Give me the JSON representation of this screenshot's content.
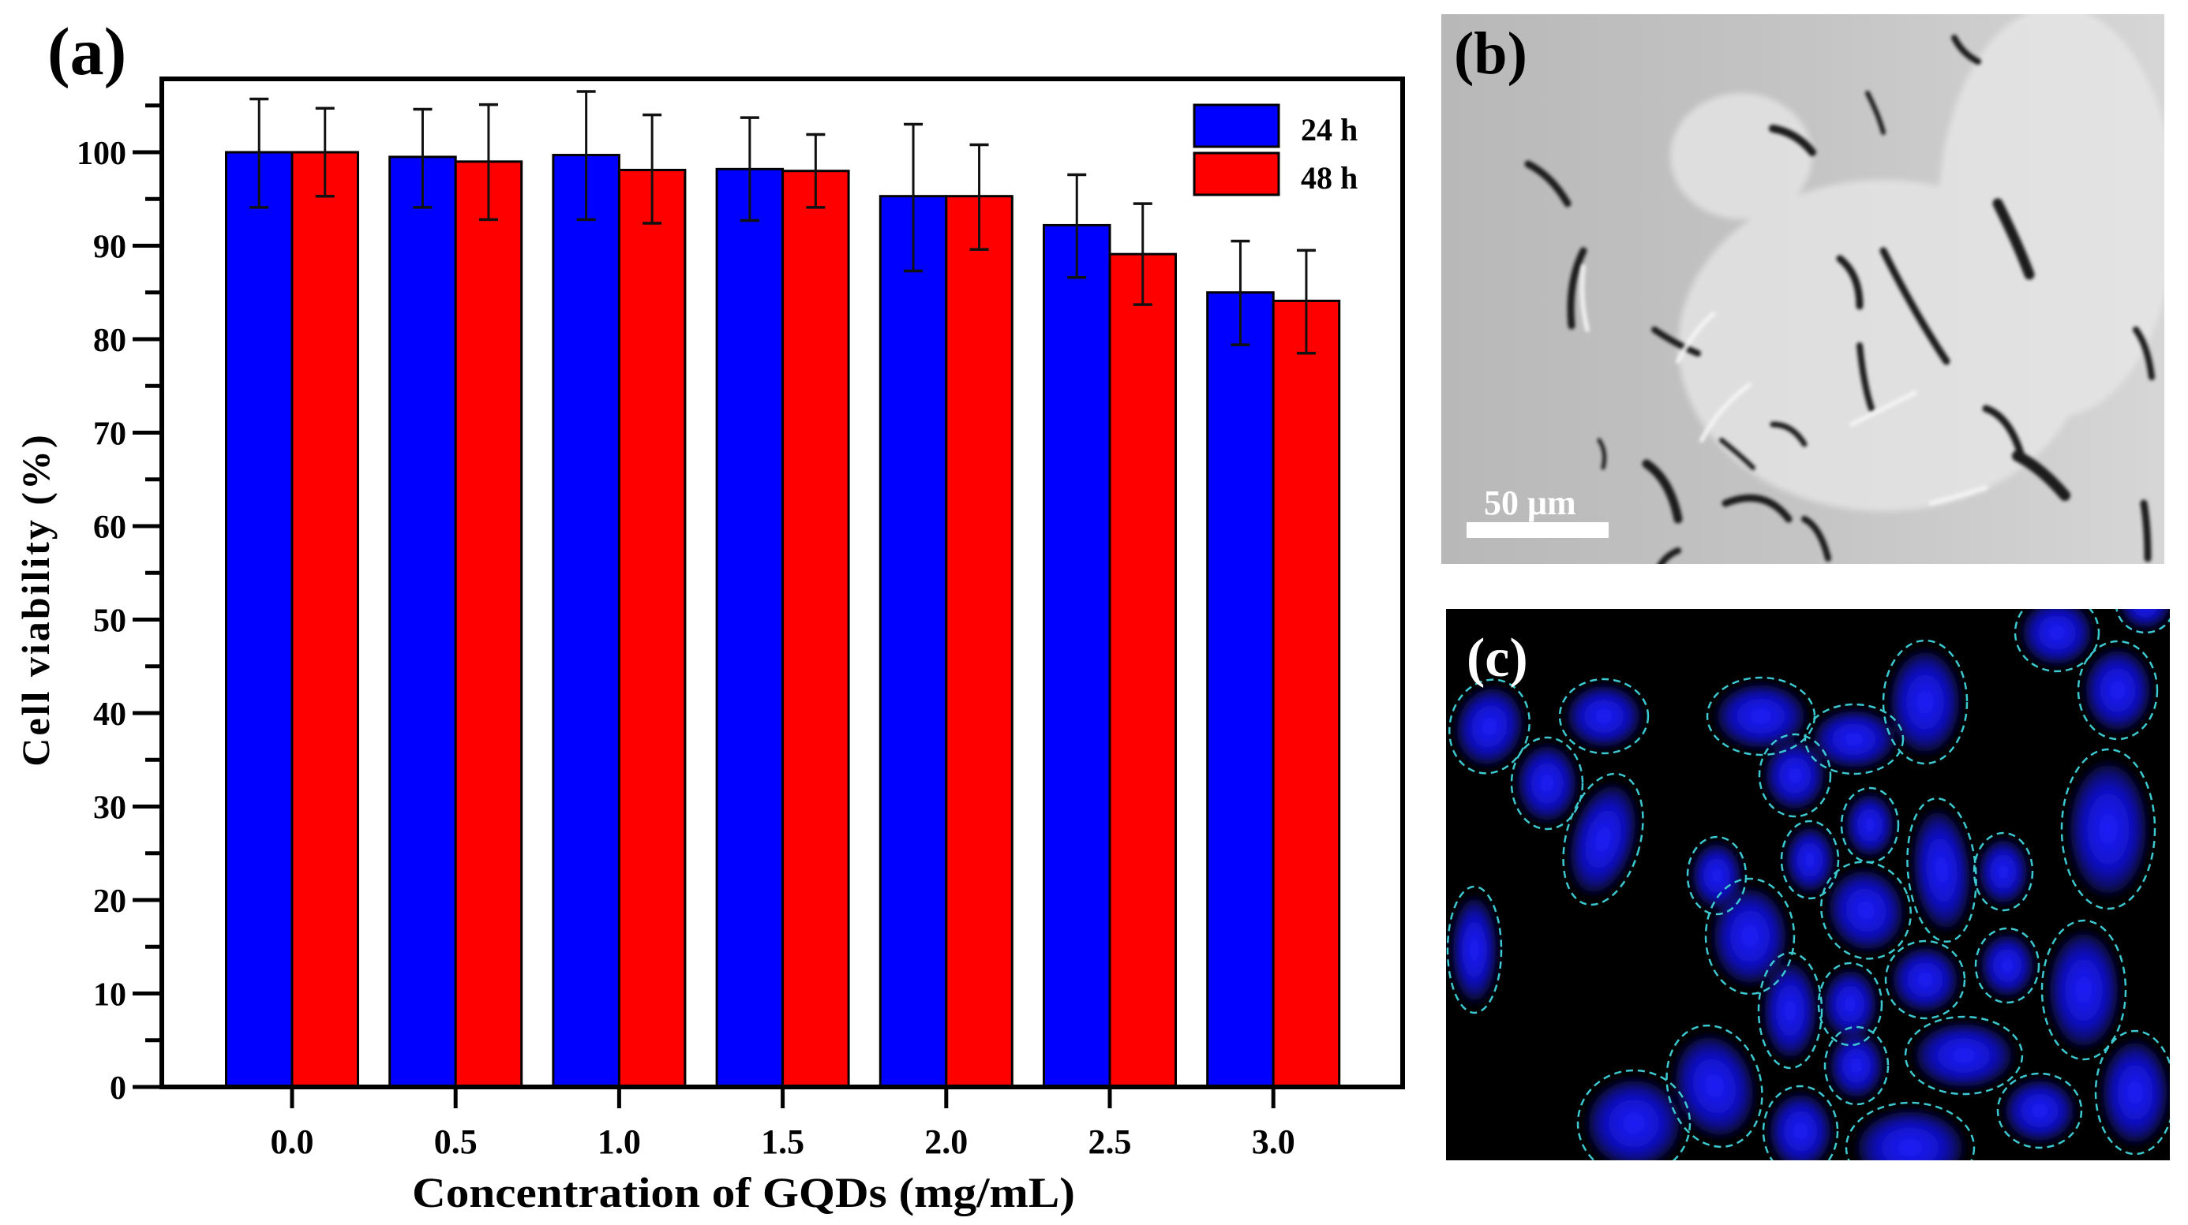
{
  "figure": {
    "panel_a_label": "(a)",
    "panel_b_label": "(b)",
    "panel_c_label": "(c)",
    "scale_bar_label": "50 μm"
  },
  "colors": {
    "series_24h": "#0000ff",
    "series_48h": "#ff0000",
    "axis": "#000000",
    "nucleus_outline": "#3cc8d0",
    "nucleus_fill": "#1a1aff",
    "panel_c_background": "#000000"
  },
  "chart_data": {
    "type": "bar",
    "title": "",
    "xlabel": "Concentration of GQDs (mg/mL)",
    "ylabel": "Cell viability (%)",
    "categories": [
      "0.0",
      "0.5",
      "1.0",
      "1.5",
      "2.0",
      "2.5",
      "3.0"
    ],
    "series": [
      {
        "name": "24 h",
        "color": "#0000ff",
        "values": [
          100.0,
          99.5,
          99.7,
          98.2,
          95.3,
          92.2,
          85.0
        ],
        "error_low": [
          94.1,
          94.1,
          92.8,
          92.7,
          87.3,
          86.6,
          79.4
        ],
        "error_high": [
          105.7,
          104.6,
          106.5,
          103.7,
          103.0,
          97.6,
          90.5
        ]
      },
      {
        "name": "48 h",
        "color": "#ff0000",
        "values": [
          100.0,
          99.0,
          98.1,
          98.0,
          95.3,
          89.1,
          84.1
        ],
        "error_low": [
          95.3,
          92.8,
          92.4,
          94.1,
          89.6,
          83.7,
          78.5
        ],
        "error_high": [
          104.7,
          105.1,
          104.0,
          101.9,
          100.8,
          94.5,
          89.5
        ]
      }
    ],
    "yticks": [
      0,
      10,
      20,
      30,
      40,
      50,
      60,
      70,
      80,
      90,
      100
    ],
    "ylim": [
      0,
      108
    ],
    "grid": false,
    "legend_position": "upper right",
    "legend": [
      "24 h",
      "48 h"
    ]
  },
  "panel_c_nuclei": [
    [
      55,
      149,
      50,
      60,
      15
    ],
    [
      200,
      136,
      56,
      47,
      0
    ],
    [
      128,
      221,
      45,
      58,
      0
    ],
    [
      199,
      292,
      47,
      85,
      15
    ],
    [
      36,
      432,
      34,
      80,
      0
    ],
    [
      399,
      136,
      68,
      49,
      0
    ],
    [
      442,
      211,
      45,
      52,
      0
    ],
    [
      517,
      165,
      62,
      44,
      0
    ],
    [
      607,
      118,
      53,
      78,
      0
    ],
    [
      774,
      30,
      53,
      49,
      0
    ],
    [
      851,
      103,
      50,
      62,
      0
    ],
    [
      886,
      -6,
      37,
      36,
      0
    ],
    [
      343,
      338,
      37,
      49,
      0
    ],
    [
      461,
      318,
      36,
      49,
      0
    ],
    [
      537,
      274,
      36,
      47,
      0
    ],
    [
      628,
      331,
      43,
      91,
      -5
    ],
    [
      706,
      333,
      37,
      49,
      0
    ],
    [
      839,
      279,
      59,
      101,
      0
    ],
    [
      385,
      415,
      56,
      73,
      0
    ],
    [
      532,
      382,
      56,
      62,
      -20
    ],
    [
      607,
      470,
      50,
      49,
      0
    ],
    [
      711,
      452,
      40,
      47,
      0
    ],
    [
      808,
      483,
      53,
      88,
      0
    ],
    [
      436,
      509,
      40,
      73,
      0
    ],
    [
      512,
      501,
      40,
      52,
      0
    ],
    [
      656,
      566,
      74,
      49,
      0
    ],
    [
      520,
      579,
      40,
      49,
      0
    ],
    [
      752,
      636,
      53,
      47,
      0
    ],
    [
      873,
      613,
      50,
      78,
      0
    ],
    [
      340,
      605,
      59,
      78,
      -15
    ],
    [
      238,
      652,
      71,
      67,
      0
    ],
    [
      449,
      662,
      47,
      57,
      0
    ],
    [
      588,
      683,
      81,
      57,
      0
    ]
  ]
}
